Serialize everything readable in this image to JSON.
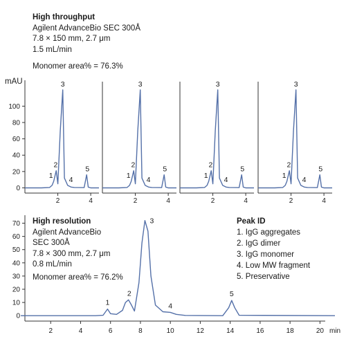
{
  "colors": {
    "trace": "#5470a8",
    "axis": "#333333",
    "text": "#1a1a1a"
  },
  "top": {
    "info": {
      "title": "High throughput",
      "lines": [
        "Agilent AdvanceBio SEC 300Å",
        "7.8 × 150 mm, 2.7 μm",
        "1.5 mL/min"
      ],
      "monomer": "Monomer area% = 76.3%"
    },
    "ylabel": "mAU",
    "y_ticks": [
      "100",
      "80",
      "60",
      "40",
      "20",
      "0"
    ],
    "x_ticks": [
      "2",
      "4"
    ]
  },
  "bottom": {
    "info": {
      "title": "High resolution",
      "lines": [
        "Agilent AdvanceBio",
        "SEC 300Å",
        "7.8 × 300 mm, 2.7 μm",
        "0.8 mL/min"
      ],
      "monomer": "Monomer area% = 76.2%"
    },
    "y_ticks": [
      "70",
      "60",
      "50",
      "40",
      "30",
      "20",
      "10",
      "0"
    ],
    "x_ticks": [
      "2",
      "4",
      "6",
      "8",
      "10",
      "12",
      "14",
      "16",
      "18",
      "20"
    ],
    "xlabel": "min",
    "legend": {
      "title": "Peak ID",
      "items": [
        "1. IgG aggregates",
        "2. IgG dimer",
        "3. IgG monomer",
        "4. Low MW fragment",
        "5. Preservative"
      ]
    }
  },
  "peak_labels": [
    "1",
    "2",
    "3",
    "4",
    "5"
  ],
  "chart_data": [
    {
      "type": "line",
      "title": "High throughput",
      "ylabel": "mAU",
      "xlabel": "min",
      "panels": 4,
      "xlim": [
        0,
        4.5
      ],
      "ylim": [
        -3,
        130
      ],
      "y_ticks": [
        0,
        20,
        40,
        60,
        80,
        100
      ],
      "x_ticks": [
        2,
        4
      ],
      "series": [
        {
          "x": [
            0.0,
            1.0,
            1.5,
            1.65,
            1.75,
            1.9,
            2.0,
            2.15,
            2.3,
            2.4,
            2.6,
            2.8,
            3.0,
            3.6,
            3.75,
            3.85,
            4.0,
            4.5
          ],
          "y": [
            0,
            0,
            0.5,
            3,
            8,
            21,
            5,
            70,
            120,
            12,
            3,
            1,
            0.5,
            0.3,
            16,
            1,
            0,
            0
          ]
        }
      ],
      "peaks": [
        {
          "label": "1",
          "x": 1.75,
          "y": 8
        },
        {
          "label": "2",
          "x": 1.95,
          "y": 21
        },
        {
          "label": "3",
          "x": 2.3,
          "y": 120
        },
        {
          "label": "4",
          "x": 2.8,
          "y": 3
        },
        {
          "label": "5",
          "x": 3.8,
          "y": 16
        }
      ]
    },
    {
      "type": "line",
      "title": "High resolution",
      "xlabel": "min",
      "xlim": [
        0,
        21
      ],
      "ylim": [
        -2,
        75
      ],
      "y_ticks": [
        0,
        10,
        20,
        30,
        40,
        50,
        60,
        70
      ],
      "x_ticks": [
        2,
        4,
        6,
        8,
        10,
        12,
        14,
        16,
        18,
        20
      ],
      "series": [
        {
          "x": [
            0,
            5.0,
            5.5,
            5.8,
            6.0,
            6.4,
            6.8,
            7.0,
            7.2,
            7.4,
            7.6,
            7.9,
            8.1,
            8.3,
            8.5,
            8.7,
            9.0,
            9.5,
            10.0,
            10.4,
            11.0,
            13.5,
            13.9,
            14.1,
            14.3,
            14.6,
            21
          ],
          "y": [
            0,
            0,
            0.3,
            5,
            1.5,
            1,
            4,
            10,
            12,
            8,
            3.5,
            25,
            55,
            72,
            64,
            30,
            8,
            3,
            2.5,
            1,
            0.2,
            0,
            6,
            11.5,
            6,
            0.3,
            0
          ]
        }
      ],
      "peaks": [
        {
          "label": "1",
          "x": 5.8,
          "y": 5
        },
        {
          "label": "2",
          "x": 7.25,
          "y": 12
        },
        {
          "label": "3",
          "x": 8.3,
          "y": 72
        },
        {
          "label": "4",
          "x": 10.0,
          "y": 2.5
        },
        {
          "label": "5",
          "x": 14.1,
          "y": 11.5
        }
      ]
    }
  ]
}
